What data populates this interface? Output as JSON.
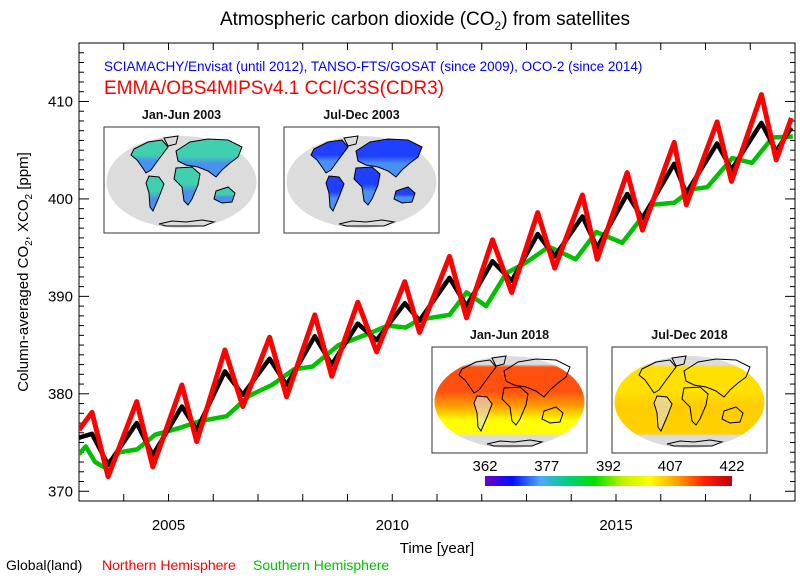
{
  "chart_data": {
    "type": "line",
    "title_parts": [
      "Atmospheric carbon dioxide (CO",
      "2",
      ") from satellites"
    ],
    "subtitle_instruments": "SCIAMACHY/Envisat (until 2012), TANSO-FTS/GOSAT (since 2009), OCO-2 (since 2014)",
    "subtitle_product": "EMMA/OBS4MIPSv4.1 CCI/C3S(CDR3)",
    "xlabel": "Time [year]",
    "ylabel_parts": [
      "Column-averaged CO",
      "2",
      ", XCO",
      "2",
      " [ppm]"
    ],
    "xlim": [
      2003,
      2019
    ],
    "ylim": [
      369,
      416
    ],
    "xticks": [
      2005,
      2010,
      2015
    ],
    "yticks": [
      370,
      380,
      390,
      400,
      410
    ],
    "grid": false,
    "legend_placement": "bottom-left",
    "series": [
      {
        "name": "Global(land)",
        "color": "#000000",
        "x": [
          2003.0,
          2003.29,
          2003.65,
          2004.29,
          2004.65,
          2005.3,
          2005.63,
          2006.26,
          2006.66,
          2007.26,
          2007.64,
          2008.27,
          2008.65,
          2009.23,
          2009.65,
          2010.28,
          2010.61,
          2011.28,
          2011.66,
          2012.24,
          2012.67,
          2013.25,
          2013.63,
          2014.25,
          2014.58,
          2015.25,
          2015.59,
          2016.3,
          2016.57,
          2017.26,
          2017.58,
          2018.25,
          2018.58,
          2018.92
        ],
        "values": [
          375.5,
          375.9,
          372.7,
          377.0,
          373.7,
          378.7,
          376.3,
          382.3,
          379.9,
          383.6,
          380.9,
          385.9,
          383.0,
          387.2,
          385.5,
          389.3,
          387.5,
          391.9,
          389.0,
          393.6,
          391.6,
          396.4,
          394.1,
          398.2,
          395.0,
          400.5,
          398.0,
          403.6,
          400.6,
          405.7,
          403.0,
          407.8,
          404.9,
          407.3
        ]
      },
      {
        "name": "Northern Hemisphere",
        "color": "#ff0000",
        "x": [
          2003.0,
          2003.29,
          2003.65,
          2004.29,
          2004.65,
          2005.3,
          2005.63,
          2006.26,
          2006.66,
          2007.26,
          2007.64,
          2008.27,
          2008.65,
          2009.23,
          2009.65,
          2010.28,
          2010.61,
          2011.28,
          2011.66,
          2012.24,
          2012.67,
          2013.25,
          2013.63,
          2014.25,
          2014.58,
          2015.25,
          2015.59,
          2016.3,
          2016.57,
          2017.26,
          2017.58,
          2018.25,
          2018.58,
          2018.92
        ],
        "values": [
          376.3,
          378.1,
          371.5,
          379.2,
          372.5,
          380.9,
          375.1,
          384.5,
          378.7,
          385.8,
          379.7,
          388.1,
          381.8,
          389.4,
          384.3,
          391.5,
          386.3,
          394.1,
          387.8,
          395.8,
          390.4,
          398.6,
          392.9,
          400.4,
          393.8,
          402.7,
          396.8,
          405.8,
          399.4,
          407.9,
          401.8,
          410.7,
          404.0,
          408.3
        ]
      },
      {
        "name": "Southern Hemisphere",
        "color": "#00c000",
        "x": [
          2003.0,
          2003.15,
          2003.36,
          2003.55,
          2003.9,
          2004.3,
          2004.7,
          2005.25,
          2005.7,
          2006.3,
          2006.8,
          2007.31,
          2007.8,
          2008.22,
          2008.8,
          2009.43,
          2009.9,
          2010.3,
          2010.6,
          2011.28,
          2011.66,
          2012.1,
          2012.55,
          2013.0,
          2013.5,
          2014.1,
          2014.56,
          2015.14,
          2015.8,
          2016.3,
          2016.7,
          2017.04,
          2017.6,
          2018.04,
          2018.5,
          2018.95
        ],
        "values": [
          373.8,
          374.6,
          373.0,
          372.5,
          374.0,
          374.3,
          375.8,
          376.5,
          377.2,
          377.7,
          379.8,
          380.9,
          382.5,
          382.8,
          385.0,
          386.1,
          387.0,
          386.8,
          387.6,
          388.1,
          390.4,
          389.0,
          392.4,
          393.5,
          395.1,
          393.8,
          396.6,
          395.5,
          399.4,
          399.6,
          401.0,
          401.2,
          404.2,
          403.7,
          406.3,
          406.4
        ]
      }
    ],
    "insets": [
      {
        "label": "Jan-Jun 2003",
        "style": "land",
        "colors": [
          "#40d0b0",
          "#4a90f0"
        ]
      },
      {
        "label": "Jul-Dec 2003",
        "style": "land",
        "colors": [
          "#2040ff",
          "#4a90f0"
        ]
      },
      {
        "label": "Jan-Jun 2018",
        "style": "full",
        "colors": [
          "#ff5010",
          "#ffa000",
          "#ffff00"
        ]
      },
      {
        "label": "Jul-Dec 2018",
        "style": "full",
        "colors": [
          "#ffe000",
          "#ffcc00",
          "#ffd000"
        ]
      }
    ],
    "colorbar": {
      "ticks": [
        "362",
        "377",
        "392",
        "407",
        "422"
      ],
      "range": [
        362,
        422
      ],
      "colors": [
        "#7000c0",
        "#0010ff",
        "#50a8ff",
        "#00d080",
        "#00e000",
        "#c0f000",
        "#ffff00",
        "#ffa000",
        "#ff2000",
        "#c00010"
      ]
    }
  }
}
